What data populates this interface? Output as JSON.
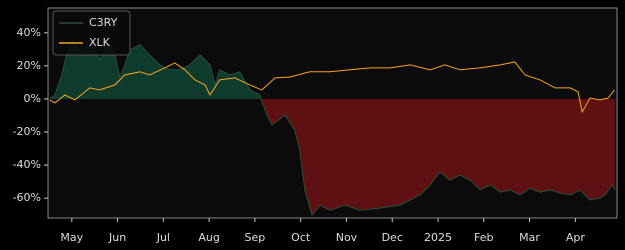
{
  "chart_data": {
    "type": "line",
    "series": [
      {
        "name": "C3RY",
        "color": "#2b4f3c",
        "fill_above": "#0e3b2c",
        "fill_below": "#5e1012",
        "x": [
          -0.48,
          -0.37,
          -0.22,
          -0.09,
          0.07,
          0.22,
          0.39,
          0.5,
          0.61,
          0.79,
          0.94,
          1.05,
          1.16,
          1.27,
          1.49,
          1.7,
          1.92,
          2.14,
          2.36,
          2.58,
          2.8,
          2.91,
          3.02,
          3.13,
          3.23,
          3.45,
          3.67,
          3.89,
          4.11,
          4.22,
          4.37,
          4.66,
          4.87,
          4.98,
          5.09,
          5.25,
          5.42,
          5.64,
          5.97,
          6.3,
          6.73,
          7.17,
          7.61,
          7.83,
          8.04,
          8.26,
          8.48,
          8.7,
          8.92,
          9.14,
          9.36,
          9.57,
          9.79,
          10.01,
          10.23,
          10.45,
          10.67,
          10.89,
          11.1,
          11.32,
          11.54,
          11.65,
          11.8,
          11.87
        ],
        "values": [
          0,
          2.4,
          14.5,
          29.7,
          33,
          28,
          35.8,
          29.7,
          23.6,
          34.5,
          26.7,
          12.7,
          20.6,
          29.7,
          32.7,
          26.7,
          20.6,
          17.6,
          17.6,
          20.6,
          26.7,
          23.6,
          20.6,
          8.5,
          17.6,
          14.5,
          16.4,
          5.5,
          2.4,
          -6.7,
          -15.8,
          -9.7,
          -18.8,
          -30.9,
          -55,
          -70.3,
          -64.2,
          -67.3,
          -64.2,
          -67.3,
          -66,
          -64.2,
          -58,
          -52,
          -44,
          -49,
          -46,
          -49,
          -55,
          -52,
          -56.4,
          -55,
          -58,
          -53.9,
          -56.4,
          -55,
          -57,
          -58,
          -55,
          -61,
          -60,
          -58,
          -52,
          -55
        ]
      },
      {
        "name": "XLK",
        "color": "#f5a623",
        "x": [
          -0.48,
          -0.37,
          -0.15,
          0.07,
          0.39,
          0.61,
          0.94,
          1.16,
          1.49,
          1.7,
          2.03,
          2.25,
          2.47,
          2.69,
          2.91,
          3.02,
          3.23,
          3.56,
          3.89,
          4.15,
          4.44,
          4.77,
          5.2,
          5.64,
          6.08,
          6.51,
          6.95,
          7.39,
          7.83,
          8.15,
          8.48,
          8.92,
          9.36,
          9.68,
          9.9,
          10.23,
          10.56,
          10.89,
          11.06,
          11.15,
          11.32,
          11.54,
          11.72,
          11.85
        ],
        "values": [
          -0.6,
          -2.4,
          2.4,
          -0.6,
          6.7,
          5.5,
          8.5,
          14.5,
          16.4,
          14.5,
          18.8,
          21.8,
          17.6,
          11.5,
          8.5,
          2.4,
          11.5,
          12.7,
          8.5,
          5.5,
          12.7,
          13.3,
          16.4,
          16.4,
          17.6,
          18.8,
          18.8,
          20.6,
          17.6,
          20.6,
          17.6,
          18.8,
          20.6,
          22.4,
          14.5,
          11.5,
          6.7,
          6.7,
          4.2,
          -7.9,
          0.6,
          -0.6,
          0.6,
          5.5
        ]
      }
    ],
    "xlim": [
      -0.52,
      11.91
    ],
    "xticks": [
      {
        "value": 0,
        "label": "May"
      },
      {
        "value": 1,
        "label": "Jun"
      },
      {
        "value": 2,
        "label": "Jul"
      },
      {
        "value": 3,
        "label": "Aug"
      },
      {
        "value": 4,
        "label": "Sep"
      },
      {
        "value": 5,
        "label": "Oct"
      },
      {
        "value": 6,
        "label": "Nov"
      },
      {
        "value": 7,
        "label": "Dec"
      },
      {
        "value": 8,
        "label": "2025"
      },
      {
        "value": 9,
        "label": "Feb"
      },
      {
        "value": 10,
        "label": "Mar"
      },
      {
        "value": 11,
        "label": "Apr"
      }
    ],
    "ylim": [
      -72,
      55
    ],
    "yticks": [
      {
        "value": -60,
        "label": "-60%"
      },
      {
        "value": -40,
        "label": "-40%"
      },
      {
        "value": -20,
        "label": "-20%"
      },
      {
        "value": 0,
        "label": "0%"
      },
      {
        "value": 20,
        "label": "20%"
      },
      {
        "value": 40,
        "label": "40%"
      }
    ],
    "legend": "upper left"
  }
}
